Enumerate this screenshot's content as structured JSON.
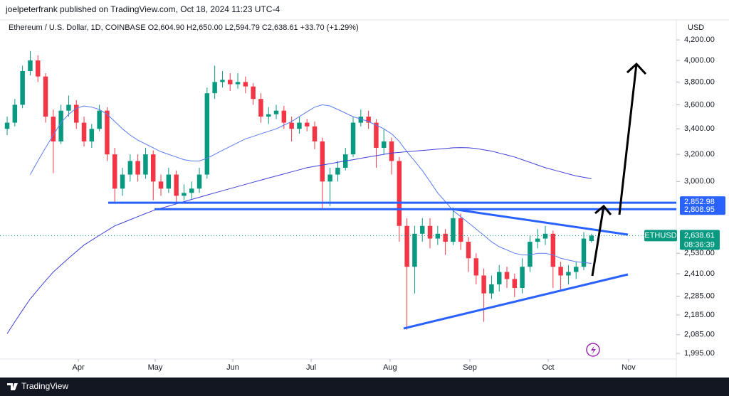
{
  "chart_data": {
    "type": "candlestick",
    "header": "joelpeterfrank published on TradingView.com, Oct 18, 2024 11:23 UTC-4",
    "title": "Ethereum / U.S. Dollar, 1D, COINBASE  O2,604.90 H2,650.00 L2,594.79 C2,638.61 +33.70 (+1.29%)",
    "currency": "USD",
    "symbol": "ETHUSD",
    "countdown": "08:36:39",
    "brand": "TradingView",
    "up_color": "#089981",
    "down_color": "#f23645",
    "log_scale": true,
    "ylim": [
      1968,
      4404
    ],
    "xlim": [
      -0.93,
      86.85
    ],
    "yticks": [
      {
        "value": 4200,
        "label": "4,200.00"
      },
      {
        "value": 4000,
        "label": "4,000.00"
      },
      {
        "value": 3800,
        "label": "3,800.00"
      },
      {
        "value": 3600,
        "label": "3,600.00"
      },
      {
        "value": 3400,
        "label": "3,400.00"
      },
      {
        "value": 3200,
        "label": "3,200.00"
      },
      {
        "value": 3000,
        "label": "3,000.00"
      },
      {
        "value": 2530,
        "label": "2,530.00"
      },
      {
        "value": 2410,
        "label": "2,410.00"
      },
      {
        "value": 2285,
        "label": "2,285.00"
      },
      {
        "value": 2185,
        "label": "2,185.00"
      },
      {
        "value": 2085,
        "label": "2,085.00"
      },
      {
        "value": 1995,
        "label": "1,995.00"
      }
    ],
    "xticks": [
      {
        "value": 9.26,
        "label": "Apr"
      },
      {
        "value": 19.26,
        "label": "May"
      },
      {
        "value": 29.35,
        "label": "Jun"
      },
      {
        "value": 39.54,
        "label": "Jul"
      },
      {
        "value": 49.8,
        "label": "Aug"
      },
      {
        "value": 60.19,
        "label": "Sep"
      },
      {
        "value": 70.37,
        "label": "Oct"
      },
      {
        "value": 80.83,
        "label": "Nov"
      }
    ],
    "levels": [
      {
        "value": 2852.98,
        "label": "2,852.98",
        "color": "#2962ff"
      },
      {
        "value": 2808.95,
        "label": "2,808.95",
        "color": "#2962ff"
      }
    ],
    "last_price": {
      "value": 2638.61,
      "label": "2,638.61",
      "color": "#089981"
    },
    "open": [
      3400,
      3450,
      3600,
      3900,
      4000,
      3850,
      3500,
      3300,
      3550,
      3600,
      3450,
      3300,
      3400,
      3550,
      3200,
      2950,
      3050,
      3150,
      3050,
      3200,
      3000,
      2950,
      3050,
      2900,
      2920,
      2950,
      3050,
      3700,
      3800,
      3820,
      3780,
      3800,
      3760,
      3650,
      3500,
      3520,
      3550,
      3450,
      3400,
      3450,
      3420,
      3300,
      3000,
      3050,
      3100,
      3200,
      3450,
      3500,
      3450,
      3250,
      3300,
      3150,
      2700,
      2450,
      2650,
      2700,
      2620,
      2650,
      2600,
      2750,
      2600,
      2500,
      2400,
      2300,
      2350,
      2420,
      2380,
      2330,
      2450,
      2600,
      2620,
      2650,
      2450,
      2400,
      2420,
      2450,
      2604.9
    ],
    "high": [
      3500,
      3650,
      3950,
      4090,
      4050,
      3880,
      3560,
      3600,
      3680,
      3640,
      3500,
      3440,
      3600,
      3580,
      3250,
      3100,
      3200,
      3200,
      3250,
      3230,
      3050,
      3100,
      3080,
      2980,
      3000,
      3100,
      3750,
      3950,
      3900,
      3880,
      3880,
      3850,
      3790,
      3700,
      3580,
      3600,
      3590,
      3500,
      3500,
      3480,
      3460,
      3330,
      3100,
      3150,
      3250,
      3500,
      3560,
      3550,
      3480,
      3400,
      3330,
      3180,
      2750,
      2700,
      2750,
      2750,
      2700,
      2680,
      2820,
      2780,
      2630,
      2530,
      2440,
      2400,
      2460,
      2450,
      2410,
      2500,
      2640,
      2680,
      2700,
      2670,
      2480,
      2460,
      2480,
      2660,
      2650
    ],
    "low": [
      3350,
      3420,
      3570,
      3860,
      3800,
      3450,
      3060,
      3280,
      3500,
      3400,
      3260,
      3250,
      3380,
      3150,
      2850,
      2900,
      3000,
      3000,
      3020,
      2870,
      2900,
      2920,
      2860,
      2870,
      2880,
      2920,
      3020,
      3650,
      3750,
      3720,
      3740,
      3700,
      3600,
      3450,
      3440,
      3480,
      3400,
      3300,
      3360,
      3380,
      3240,
      2810,
      2830,
      3000,
      3080,
      3180,
      3420,
      3400,
      3100,
      3200,
      3050,
      2600,
      2110,
      2300,
      2600,
      2560,
      2580,
      2520,
      2580,
      2550,
      2420,
      2350,
      2150,
      2270,
      2310,
      2330,
      2280,
      2300,
      2420,
      2560,
      2580,
      2330,
      2310,
      2350,
      2380,
      2430,
      2594.79
    ],
    "close": [
      3450,
      3600,
      3900,
      4000,
      3850,
      3500,
      3300,
      3550,
      3600,
      3450,
      3300,
      3400,
      3550,
      3200,
      2950,
      3050,
      3150,
      3050,
      3200,
      3000,
      2950,
      3050,
      2900,
      2920,
      2950,
      3050,
      3700,
      3800,
      3820,
      3780,
      3800,
      3760,
      3650,
      3500,
      3520,
      3550,
      3450,
      3400,
      3450,
      3420,
      3300,
      3000,
      3050,
      3100,
      3200,
      3450,
      3500,
      3450,
      3250,
      3300,
      3150,
      2700,
      2450,
      2650,
      2700,
      2620,
      2650,
      2600,
      2750,
      2600,
      2500,
      2400,
      2300,
      2350,
      2420,
      2380,
      2330,
      2450,
      2600,
      2620,
      2650,
      2450,
      2400,
      2420,
      2450,
      2620,
      2638.61
    ],
    "series": [
      {
        "color": "#5b7cf0",
        "values": [
          null,
          null,
          null,
          3050,
          3150,
          3250,
          3350,
          3450,
          3520,
          3570,
          3590,
          3580,
          3560,
          3520,
          3460,
          3400,
          3350,
          3310,
          3280,
          3250,
          3220,
          3200,
          3180,
          3160,
          3150,
          3150,
          3170,
          3200,
          3230,
          3260,
          3290,
          3320,
          3340,
          3360,
          3380,
          3400,
          3430,
          3460,
          3500,
          3540,
          3580,
          3600,
          3590,
          3560,
          3530,
          3500,
          3480,
          3460,
          3430,
          3400,
          3360,
          3300,
          3220,
          3150,
          3080,
          3000,
          2920,
          2860,
          2800,
          2760,
          2720,
          2680,
          2640,
          2600,
          2570,
          2550,
          2530,
          2520,
          2520,
          2530,
          2530,
          2520,
          2500,
          2490,
          2480,
          2475,
          2470
        ]
      },
      {
        "color": "#3f3fd8",
        "values": [
          2090,
          2150,
          2210,
          2270,
          2320,
          2370,
          2420,
          2460,
          2500,
          2540,
          2580,
          2610,
          2640,
          2670,
          2700,
          2720,
          2740,
          2760,
          2780,
          2800,
          2815,
          2830,
          2845,
          2860,
          2875,
          2890,
          2905,
          2920,
          2935,
          2950,
          2965,
          2980,
          2995,
          3010,
          3025,
          3040,
          3055,
          3070,
          3085,
          3100,
          3110,
          3120,
          3130,
          3140,
          3150,
          3160,
          3170,
          3180,
          3190,
          3200,
          3210,
          3215,
          3220,
          3225,
          3230,
          3235,
          3240,
          3245,
          3250,
          3252,
          3250,
          3245,
          3235,
          3225,
          3210,
          3195,
          3180,
          3160,
          3140,
          3120,
          3100,
          3085,
          3070,
          3055,
          3040,
          3030,
          3020
        ]
      }
    ]
  }
}
